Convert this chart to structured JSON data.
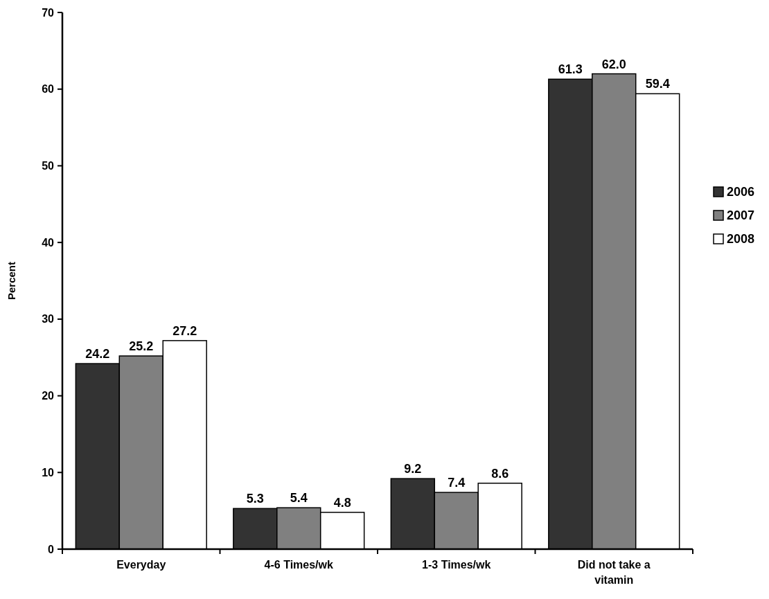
{
  "chart_data": {
    "type": "bar",
    "ylabel": "Percent",
    "categories": [
      "Everyday",
      "4-6 Times/wk",
      "1-3 Times/wk",
      "Did not take a vitamin"
    ],
    "series": [
      {
        "name": "2006",
        "color": "#333333",
        "values": [
          24.2,
          5.3,
          9.2,
          61.3
        ],
        "value_labels": [
          "24.2",
          "5.3",
          "9.2",
          "61.3"
        ]
      },
      {
        "name": "2007",
        "color": "#808080",
        "values": [
          25.2,
          5.4,
          7.4,
          62.0
        ],
        "value_labels": [
          "25.2",
          "5.4",
          "7.4",
          "62.0"
        ]
      },
      {
        "name": "2008",
        "color": "#ffffff",
        "values": [
          27.2,
          4.8,
          8.6,
          59.4
        ],
        "value_labels": [
          "27.2",
          "4.8",
          "8.6",
          "59.4"
        ]
      }
    ],
    "ylim": [
      0,
      70
    ],
    "yticks": [
      0,
      10,
      20,
      30,
      40,
      50,
      60,
      70
    ],
    "legend": "right"
  }
}
